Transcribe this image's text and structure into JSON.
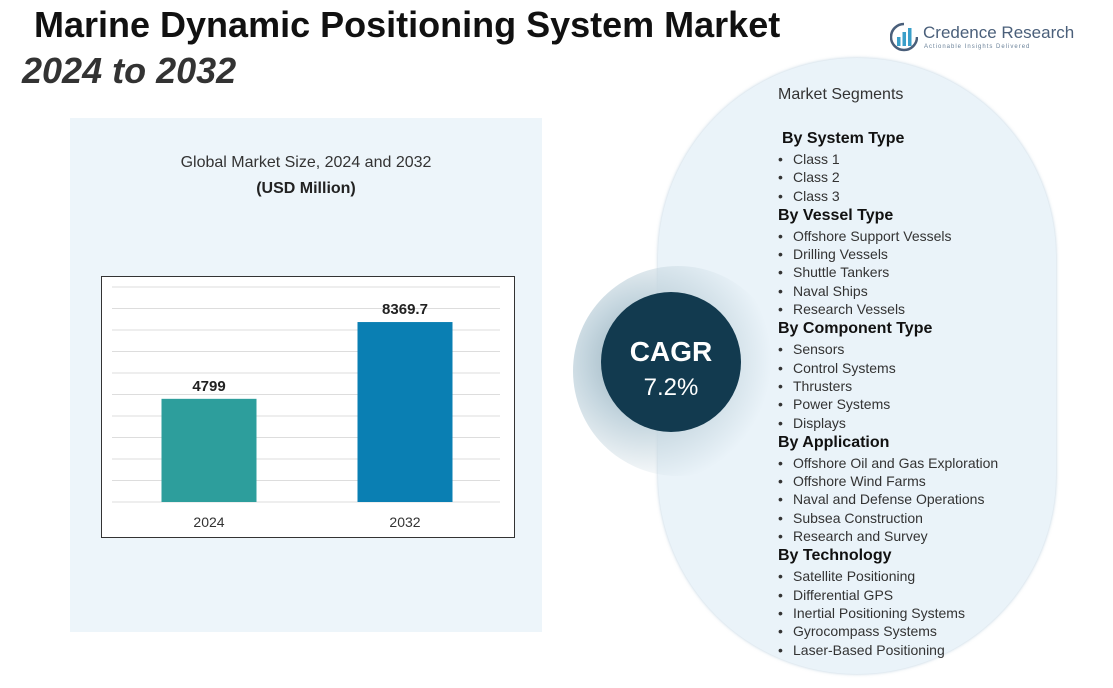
{
  "header": {
    "title": "Marine Dynamic Positioning System Market",
    "subtitle": "2024 to 2032"
  },
  "logo": {
    "name": "Credence Research",
    "tagline": "Actionable Insights Delivered",
    "icon": "bar-chart-logo-icon",
    "colors": {
      "text": "#4a5f7a",
      "bars": "#3a9fc9"
    }
  },
  "chart_data": {
    "type": "bar",
    "title": "Global Market Size, 2024 and 2032",
    "unit_label": "(USD Million)",
    "categories": [
      "2024",
      "2032"
    ],
    "values": [
      4799,
      8369.7
    ],
    "value_labels": [
      "4799",
      "8369.7"
    ],
    "bar_colors": [
      "#2d9e9c",
      "#0a7fb3"
    ],
    "ylim": [
      0,
      10000
    ],
    "grid": true,
    "xlabel": "",
    "ylabel": ""
  },
  "cagr": {
    "label": "CAGR",
    "value": "7.2%"
  },
  "segments": {
    "header": "Market Segments",
    "bullet": "•",
    "groups": [
      {
        "title": "By System Type",
        "items": [
          "Class 1",
          "Class 2",
          "Class 3"
        ]
      },
      {
        "title": "By Vessel Type",
        "items": [
          "Offshore Support Vessels",
          "Drilling Vessels",
          "Shuttle Tankers",
          "Naval Ships",
          "Research Vessels"
        ]
      },
      {
        "title": "By Component Type",
        "items": [
          "Sensors",
          "Control Systems",
          "Thrusters",
          "Power Systems",
          "Displays"
        ]
      },
      {
        "title": "By Application",
        "items": [
          "Offshore Oil and Gas Exploration",
          "Offshore Wind Farms",
          "Naval and Defense Operations",
          "Subsea Construction",
          "Research and Survey"
        ]
      },
      {
        "title": "By Technology",
        "items": [
          "Satellite Positioning",
          "Differential GPS",
          "Inertial Positioning Systems",
          "Gyrocompass Systems",
          "Laser-Based Positioning"
        ]
      }
    ]
  }
}
